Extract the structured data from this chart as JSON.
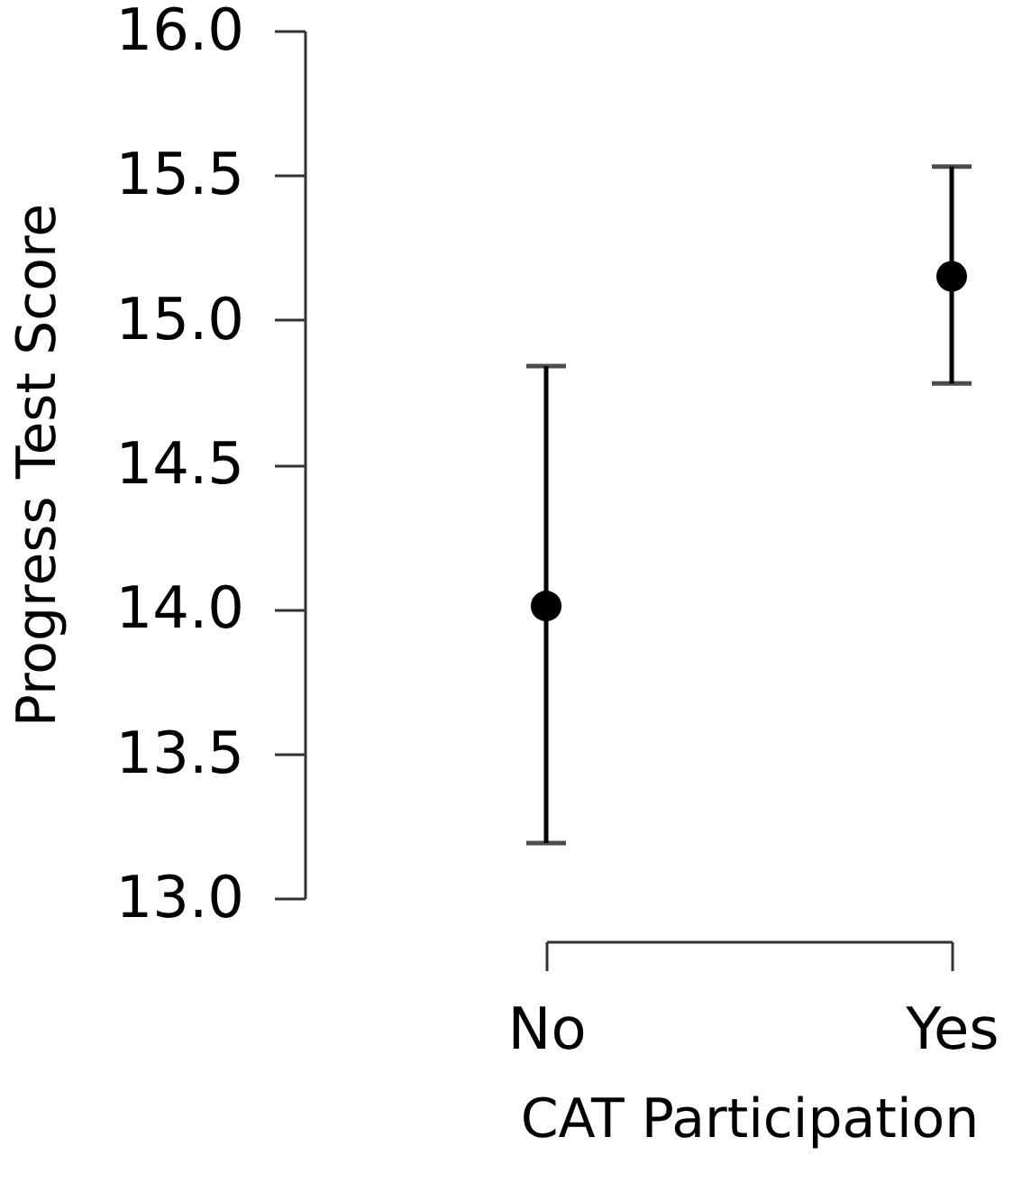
{
  "chart_data": {
    "type": "scatter",
    "xlabel": "CAT Participation",
    "ylabel": "Progress Test Score",
    "categories": [
      "No",
      "Yes"
    ],
    "series": [
      {
        "color": "#000000",
        "values": [
          14.01,
          15.15
        ],
        "errors": [
          [
            13.19,
            14.84
          ],
          [
            14.78,
            15.53
          ]
        ]
      }
    ],
    "ylim": [
      13,
      16
    ],
    "yticks": [
      {
        "value": 13,
        "label": "13.0"
      },
      {
        "value": 13.5,
        "label": "13.5"
      },
      {
        "value": 14,
        "label": "14.0"
      },
      {
        "value": 14.5,
        "label": "14.5"
      },
      {
        "value": 15,
        "label": "15.0"
      },
      {
        "value": 15.5,
        "label": "15.5"
      },
      {
        "value": 16,
        "label": "16.0"
      }
    ],
    "marker": "circle"
  }
}
